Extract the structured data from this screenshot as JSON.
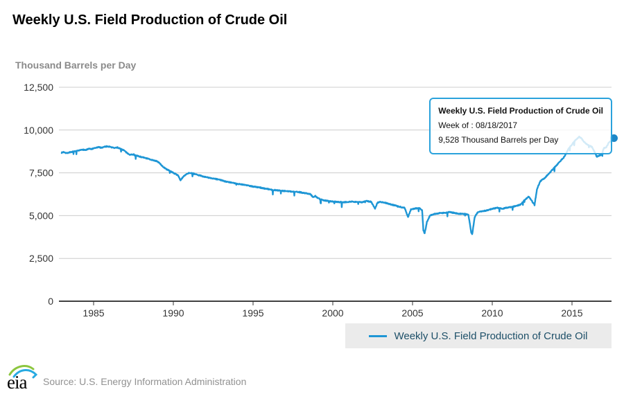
{
  "page": {
    "title": "Weekly U.S. Field Production of Crude Oil",
    "units_label": "Thousand Barrels per Day"
  },
  "tooltip": {
    "title": "Weekly U.S. Field Production of Crude Oil",
    "week": "Week of : 08/18/2017",
    "value": "9,528 Thousand Barrels per Day"
  },
  "legend": {
    "label": "Weekly U.S. Field Production of Crude Oil"
  },
  "footer": {
    "logo_text": "eia",
    "source": "Source: U.S. Energy Information Administration"
  },
  "colors": {
    "line": "#1e96d5",
    "marker": "#1d87c8",
    "grid": "#cccccc",
    "axis": "#000000",
    "tick_text": "#333333",
    "tooltip_border": "#2aa2dc",
    "tooltip_bg": "rgba(255,255,255,0.8)",
    "legend_bg": "#ebebeb",
    "legend_text": "#1d4f68",
    "logo_green": "#8cc63f",
    "logo_blue": "#27aae1"
  },
  "chart_data": {
    "type": "line",
    "title": "Weekly U.S. Field Production of Crude Oil",
    "ylabel": "Thousand Barrels per Day",
    "xlabel": "",
    "grid": true,
    "legend_position": "bottom-right",
    "x_range": [
      1983.0,
      2017.8
    ],
    "y_range": [
      0,
      12500
    ],
    "yticks": [
      {
        "value": 0,
        "label": "0"
      },
      {
        "value": 2500,
        "label": "2,500"
      },
      {
        "value": 5000,
        "label": "5,000"
      },
      {
        "value": 7500,
        "label": "7,500"
      },
      {
        "value": 10000,
        "label": "10,000"
      },
      {
        "value": 12500,
        "label": "12,500"
      }
    ],
    "xticks": [
      {
        "value": 1985,
        "label": "1985"
      },
      {
        "value": 1990,
        "label": "1990"
      },
      {
        "value": 1995,
        "label": "1995"
      },
      {
        "value": 2000,
        "label": "2000"
      },
      {
        "value": 2005,
        "label": "2005"
      },
      {
        "value": 2010,
        "label": "2010"
      },
      {
        "value": 2015,
        "label": "2015"
      }
    ],
    "highlight_point": {
      "x": 2017.63,
      "y": 9528,
      "date": "08/18/2017"
    },
    "series": [
      {
        "name": "Weekly U.S. Field Production of Crude Oil",
        "points": [
          [
            1983.0,
            8680
          ],
          [
            1983.15,
            8720
          ],
          [
            1983.3,
            8650
          ],
          [
            1983.5,
            8700
          ],
          [
            1983.7,
            8730
          ],
          [
            1983.9,
            8760
          ],
          [
            1984.1,
            8800
          ],
          [
            1984.3,
            8860
          ],
          [
            1984.5,
            8830
          ],
          [
            1984.7,
            8900
          ],
          [
            1984.9,
            8890
          ],
          [
            1985.1,
            8950
          ],
          [
            1985.3,
            9000
          ],
          [
            1985.5,
            8970
          ],
          [
            1985.7,
            9030
          ],
          [
            1985.9,
            9050
          ],
          [
            1986.1,
            9000
          ],
          [
            1986.3,
            8950
          ],
          [
            1986.5,
            8980
          ],
          [
            1986.7,
            8900
          ],
          [
            1986.9,
            8820
          ],
          [
            1987.1,
            8650
          ],
          [
            1987.3,
            8560
          ],
          [
            1987.5,
            8580
          ],
          [
            1987.7,
            8500
          ],
          [
            1987.9,
            8450
          ],
          [
            1988.1,
            8400
          ],
          [
            1988.3,
            8350
          ],
          [
            1988.5,
            8300
          ],
          [
            1988.7,
            8250
          ],
          [
            1988.9,
            8200
          ],
          [
            1989.1,
            8100
          ],
          [
            1989.3,
            7900
          ],
          [
            1989.5,
            7750
          ],
          [
            1989.7,
            7650
          ],
          [
            1989.9,
            7550
          ],
          [
            1990.1,
            7450
          ],
          [
            1990.3,
            7350
          ],
          [
            1990.45,
            7060
          ],
          [
            1990.6,
            7250
          ],
          [
            1990.8,
            7420
          ],
          [
            1991.0,
            7500
          ],
          [
            1991.2,
            7470
          ],
          [
            1991.4,
            7410
          ],
          [
            1991.6,
            7360
          ],
          [
            1991.8,
            7310
          ],
          [
            1992.0,
            7260
          ],
          [
            1992.3,
            7200
          ],
          [
            1992.6,
            7150
          ],
          [
            1992.9,
            7100
          ],
          [
            1993.2,
            7010
          ],
          [
            1993.5,
            6950
          ],
          [
            1993.8,
            6900
          ],
          [
            1994.1,
            6850
          ],
          [
            1994.4,
            6810
          ],
          [
            1994.7,
            6760
          ],
          [
            1995.0,
            6700
          ],
          [
            1995.3,
            6660
          ],
          [
            1995.6,
            6610
          ],
          [
            1995.9,
            6560
          ],
          [
            1996.2,
            6510
          ],
          [
            1996.5,
            6480
          ],
          [
            1996.8,
            6450
          ],
          [
            1997.1,
            6430
          ],
          [
            1997.4,
            6410
          ],
          [
            1997.7,
            6390
          ],
          [
            1998.0,
            6360
          ],
          [
            1998.3,
            6310
          ],
          [
            1998.6,
            6260
          ],
          [
            1998.75,
            6080
          ],
          [
            1998.9,
            6150
          ],
          [
            1999.1,
            6000
          ],
          [
            1999.4,
            5900
          ],
          [
            1999.7,
            5860
          ],
          [
            2000.0,
            5820
          ],
          [
            2000.3,
            5800
          ],
          [
            2000.6,
            5780
          ],
          [
            2000.9,
            5800
          ],
          [
            2001.2,
            5820
          ],
          [
            2001.5,
            5800
          ],
          [
            2001.8,
            5780
          ],
          [
            2002.1,
            5850
          ],
          [
            2002.4,
            5810
          ],
          [
            2002.65,
            5420
          ],
          [
            2002.8,
            5760
          ],
          [
            2003.0,
            5800
          ],
          [
            2003.3,
            5750
          ],
          [
            2003.6,
            5660
          ],
          [
            2003.9,
            5600
          ],
          [
            2004.2,
            5510
          ],
          [
            2004.5,
            5460
          ],
          [
            2004.72,
            4920
          ],
          [
            2004.9,
            5360
          ],
          [
            2005.1,
            5410
          ],
          [
            2005.4,
            5450
          ],
          [
            2005.6,
            5310
          ],
          [
            2005.68,
            4150
          ],
          [
            2005.76,
            3960
          ],
          [
            2005.9,
            4620
          ],
          [
            2006.1,
            5010
          ],
          [
            2006.4,
            5100
          ],
          [
            2006.7,
            5150
          ],
          [
            2007.0,
            5160
          ],
          [
            2007.3,
            5210
          ],
          [
            2007.6,
            5160
          ],
          [
            2007.9,
            5110
          ],
          [
            2008.2,
            5100
          ],
          [
            2008.5,
            5060
          ],
          [
            2008.68,
            4020
          ],
          [
            2008.74,
            3900
          ],
          [
            2008.9,
            4920
          ],
          [
            2009.1,
            5210
          ],
          [
            2009.4,
            5260
          ],
          [
            2009.7,
            5310
          ],
          [
            2010.0,
            5400
          ],
          [
            2010.3,
            5460
          ],
          [
            2010.6,
            5410
          ],
          [
            2010.9,
            5460
          ],
          [
            2011.2,
            5510
          ],
          [
            2011.5,
            5560
          ],
          [
            2011.8,
            5660
          ],
          [
            2012.0,
            5900
          ],
          [
            2012.3,
            6120
          ],
          [
            2012.65,
            5620
          ],
          [
            2012.8,
            6520
          ],
          [
            2013.0,
            7000
          ],
          [
            2013.3,
            7210
          ],
          [
            2013.6,
            7510
          ],
          [
            2013.9,
            7810
          ],
          [
            2014.2,
            8120
          ],
          [
            2014.5,
            8420
          ],
          [
            2014.8,
            8920
          ],
          [
            2015.0,
            9150
          ],
          [
            2015.2,
            9400
          ],
          [
            2015.45,
            9610
          ],
          [
            2015.6,
            9500
          ],
          [
            2015.75,
            9310
          ],
          [
            2015.9,
            9190
          ],
          [
            2016.1,
            9090
          ],
          [
            2016.25,
            9000
          ],
          [
            2016.4,
            8750
          ],
          [
            2016.55,
            8450
          ],
          [
            2016.7,
            8510
          ],
          [
            2016.85,
            8560
          ],
          [
            2017.0,
            8950
          ],
          [
            2017.15,
            9000
          ],
          [
            2017.3,
            9250
          ],
          [
            2017.45,
            9380
          ],
          [
            2017.55,
            9460
          ],
          [
            2017.63,
            9528
          ]
        ]
      }
    ],
    "render_hints": {
      "noise_amplitude": 26,
      "spike_probability": 0.018,
      "spike_max": 300,
      "seed": 7
    }
  }
}
